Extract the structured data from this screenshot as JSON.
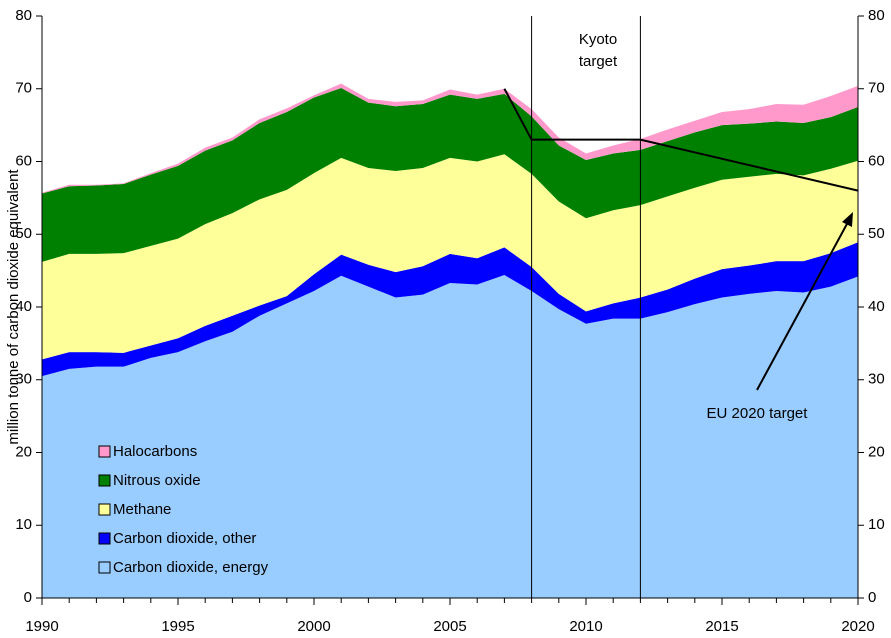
{
  "chart_data": {
    "type": "stacked-area",
    "y_label": "million tonne of carbon dioxide equivalent",
    "x": [
      1990,
      1991,
      1992,
      1993,
      1994,
      1995,
      1996,
      1997,
      1998,
      1999,
      2000,
      2001,
      2002,
      2003,
      2004,
      2005,
      2006,
      2007,
      2008,
      2009,
      2010,
      2011,
      2012,
      2013,
      2014,
      2015,
      2016,
      2017,
      2018,
      2019,
      2020
    ],
    "series": [
      {
        "name": "Carbon dioxide, energy",
        "color": "#99ccff",
        "values": [
          30.5,
          31.5,
          31.8,
          31.8,
          33,
          33.8,
          35.3,
          36.6,
          38.8,
          40.5,
          42.2,
          44.3,
          42.8,
          41.3,
          41.7,
          43.3,
          43.1,
          44.4,
          42.2,
          39.7,
          37.7,
          38.4,
          38.4,
          39.3,
          40.4,
          41.3,
          41.8,
          42.2,
          42.0,
          42.8,
          44.2
        ]
      },
      {
        "name": "Carbon dioxide, other",
        "color": "#0000ff",
        "values": [
          2.3,
          2.3,
          2.0,
          1.9,
          1.7,
          1.9,
          2.1,
          2.2,
          1.4,
          1.0,
          2.3,
          2.9,
          3.0,
          3.5,
          3.9,
          4.0,
          3.6,
          3.8,
          3.3,
          2.1,
          1.7,
          2.1,
          2.9,
          3.1,
          3.5,
          3.9,
          3.9,
          4.1,
          4.3,
          4.6,
          4.7
        ]
      },
      {
        "name": "Methane",
        "color": "#ffff99",
        "values": [
          13.4,
          13.5,
          13.5,
          13.7,
          13.7,
          13.7,
          14.0,
          14.1,
          14.6,
          14.6,
          13.9,
          13.3,
          13.3,
          13.9,
          13.5,
          13.2,
          13.3,
          12.8,
          12.8,
          12.7,
          12.8,
          12.8,
          12.7,
          12.8,
          12.5,
          12.3,
          12.2,
          12.0,
          11.8,
          11.6,
          11.2
        ]
      },
      {
        "name": "Nitrous oxide",
        "color": "#008000",
        "values": [
          9.4,
          9.3,
          9.4,
          9.5,
          9.8,
          10.0,
          10.1,
          10.0,
          10.5,
          10.7,
          10.4,
          9.6,
          9.0,
          8.9,
          8.8,
          8.7,
          8.6,
          8.3,
          7.9,
          7.7,
          8.0,
          7.8,
          7.6,
          7.6,
          7.6,
          7.5,
          7.3,
          7.2,
          7.2,
          7.1,
          7.4
        ]
      },
      {
        "name": "Halocarbons",
        "color": "#ff99cc",
        "values": [
          0.1,
          0.2,
          0.1,
          0.1,
          0.2,
          0.3,
          0.4,
          0.4,
          0.5,
          0.5,
          0.3,
          0.6,
          0.5,
          0.6,
          0.5,
          0.7,
          0.6,
          0.7,
          1.0,
          1.1,
          0.9,
          1.1,
          1.5,
          1.6,
          1.6,
          1.8,
          2.0,
          2.4,
          2.5,
          2.9,
          2.9
        ]
      }
    ],
    "target_line": {
      "x": [
        2007,
        2008,
        2012,
        2020
      ],
      "values": [
        70,
        63,
        63,
        56
      ]
    },
    "kyoto_period": [
      2008,
      2012
    ],
    "annotations": [
      "Kyoto target",
      "EU 2020 target"
    ],
    "xlim": [
      1990,
      2020
    ],
    "xticks": [
      1990,
      1995,
      2000,
      2005,
      2010,
      2015,
      2020
    ],
    "ylim": [
      0,
      80
    ],
    "yticks": [
      0,
      10,
      20,
      30,
      40,
      50,
      60,
      70,
      80
    ],
    "y2lim": [
      0,
      80
    ],
    "y2ticks": [
      0,
      10,
      20,
      30,
      40,
      50,
      60,
      70,
      80
    ],
    "legend": "lower-left"
  }
}
